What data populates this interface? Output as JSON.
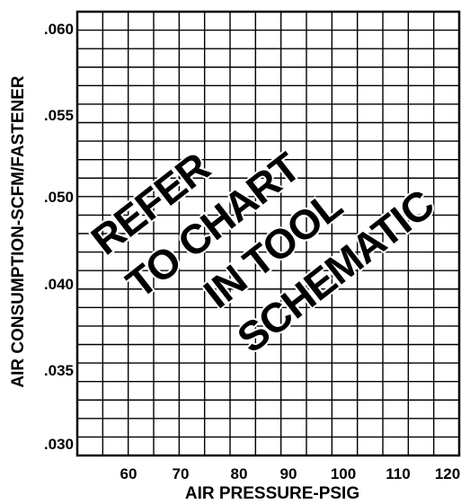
{
  "chart_data": {
    "type": "line",
    "title": "",
    "xlabel": "AIR PRESSURE-PSIG",
    "ylabel": "AIR CONSUMPTION-SCFM/FASTENER",
    "x_ticks": [
      "60",
      "70",
      "80",
      "90",
      "100",
      "110",
      "120"
    ],
    "y_ticks": [
      ".030",
      ".035",
      ".040",
      ".050",
      ".055",
      ".060"
    ],
    "grid": true,
    "series": [],
    "annotation": [
      "REFER",
      "TO CHART",
      "IN TOOL",
      "SCHEMATIC"
    ]
  }
}
